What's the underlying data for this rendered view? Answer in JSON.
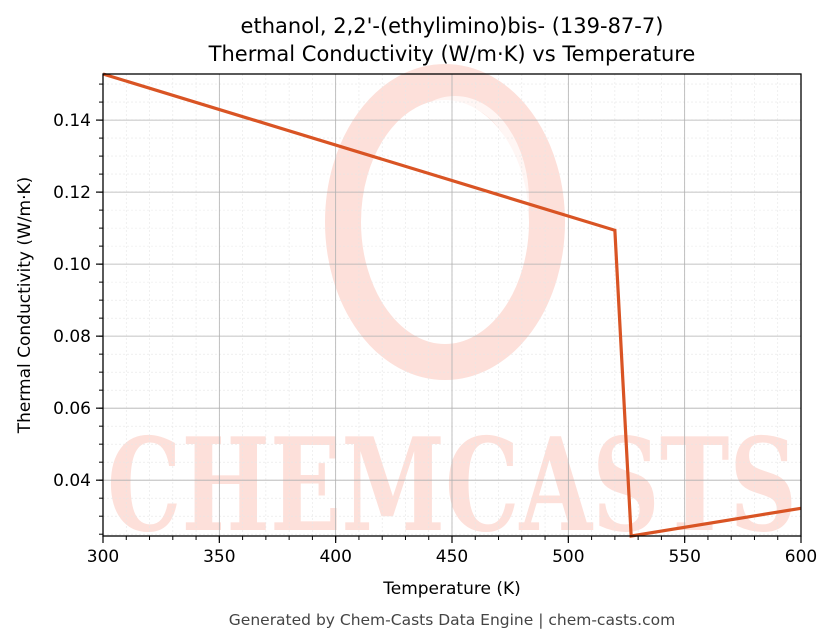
{
  "chart_data": {
    "type": "line",
    "title_line1": "ethanol, 2,2'-(ethylimino)bis- (139-87-7)",
    "title_line2": "Thermal Conductivity (W/m·K) vs Temperature",
    "xlabel": "Temperature (K)",
    "ylabel": "Thermal Conductivity (W/m·K)",
    "xlim": [
      300,
      600
    ],
    "ylim": [
      0.0245,
      0.1528
    ],
    "x_ticks": [
      300,
      350,
      400,
      450,
      500,
      550,
      600
    ],
    "y_ticks": [
      0.04,
      0.06,
      0.08,
      0.1,
      0.12,
      0.14
    ],
    "grid": true,
    "series": [
      {
        "color": "#d95424",
        "x": [
          300,
          520,
          527,
          600
        ],
        "y": [
          0.1528,
          0.1094,
          0.0245,
          0.0322
        ]
      }
    ]
  },
  "watermark": {
    "text": "CHEMCASTS",
    "color": "#fde0da"
  },
  "footer": "Generated by Chem-Casts Data Engine | chem-casts.com"
}
